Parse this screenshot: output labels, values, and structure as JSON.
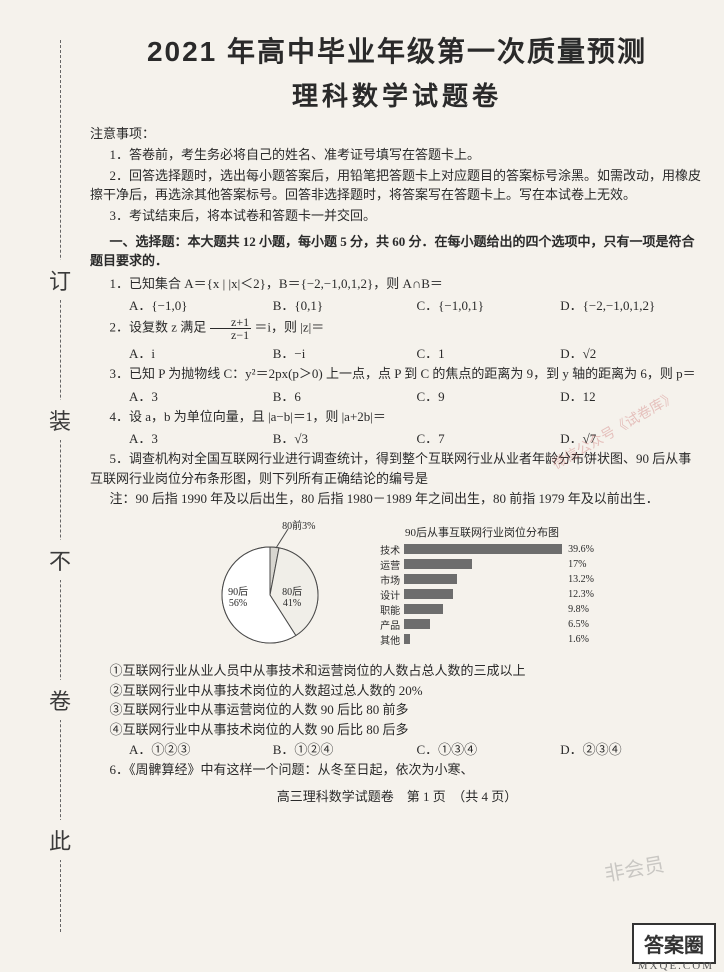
{
  "header": {
    "title": "2021 年高中毕业年级第一次质量预测",
    "subtitle": "理科数学试题卷"
  },
  "binding": {
    "chars": [
      "此",
      "卷",
      "不",
      "装",
      "订"
    ]
  },
  "notice": {
    "head": "注意事项：",
    "items": [
      "1．答卷前，考生务必将自己的姓名、准考证号填写在答题卡上。",
      "2．回答选择题时，选出每小题答案后，用铅笔把答题卡上对应题目的答案标号涂黑。如需改动，用橡皮擦干净后，再选涂其他答案标号。回答非选择题时，将答案写在答题卡上。写在本试卷上无效。",
      "3．考试结束后，将本试卷和答题卡一并交回。"
    ]
  },
  "section1": {
    "head": "一、选择题：本大题共 12 小题，每小题 5 分，共 60 分．在每小题给出的四个选项中，只有一项是符合题目要求的．"
  },
  "q1": {
    "text": "1．已知集合 A＝{x | |x|＜2}，B＝{−2,−1,0,1,2}，则 A∩B＝",
    "opts": [
      "A．{−1,0}",
      "B．{0,1}",
      "C．{−1,0,1}",
      "D．{−2,−1,0,1,2}"
    ]
  },
  "q2": {
    "pre": "2．设复数 z 满足 ",
    "frac_n": "z+1",
    "frac_d": "z−1",
    "post": "＝i，则 |z|＝",
    "opts": [
      "A．i",
      "B．−i",
      "C．1",
      "D．√2"
    ]
  },
  "q3": {
    "text": "3．已知 P 为抛物线 C：y²＝2px(p＞0) 上一点，点 P 到 C 的焦点的距离为 9，到 y 轴的距离为 6，则 p＝",
    "opts": [
      "A．3",
      "B．6",
      "C．9",
      "D．12"
    ]
  },
  "q4": {
    "text": "4．设 a，b 为单位向量，且 |a−b|＝1，则 |a+2b|＝",
    "opts": [
      "A．3",
      "B．√3",
      "C．7",
      "D．√7"
    ]
  },
  "q5": {
    "text": "5．调查机构对全国互联网行业进行调查统计，得到整个互联网行业从业者年龄分布饼状图、90 后从事互联网行业岗位分布条形图，则下列所有正确结论的编号是",
    "note": "注：90 后指 1990 年及以后出生，80 后指 1980－1989 年之间出生，80 前指 1979 年及以前出生．"
  },
  "pie": {
    "title": "",
    "labels": {
      "pre80": "80前3%",
      "post90": "90后\n56%",
      "post80": "80后\n41%"
    },
    "slices": [
      {
        "label": "80前",
        "value": 3,
        "color": "#d8d6d0"
      },
      {
        "label": "90后",
        "value": 56,
        "color": "#ffffff"
      },
      {
        "label": "80后",
        "value": 41,
        "color": "#f0eee8"
      }
    ],
    "stroke": "#4a4a4a"
  },
  "bar": {
    "title": "90后从事互联网行业岗位分布图",
    "rows": [
      {
        "label": "技术",
        "value": 39.6,
        "text": "39.6%"
      },
      {
        "label": "运营",
        "value": 17.0,
        "text": "17%"
      },
      {
        "label": "市场",
        "value": 13.2,
        "text": "13.2%"
      },
      {
        "label": "设计",
        "value": 12.3,
        "text": "12.3%"
      },
      {
        "label": "职能",
        "value": 9.8,
        "text": "9.8%"
      },
      {
        "label": "产品",
        "value": 6.5,
        "text": "6.5%"
      },
      {
        "label": "其他",
        "value": 1.6,
        "text": "1.6%"
      }
    ],
    "bar_color": "#6d6d6d",
    "max": 40
  },
  "statements": [
    "①互联网行业从业人员中从事技术和运营岗位的人数占总人数的三成以上",
    "②互联网行业中从事技术岗位的人数超过总人数的 20%",
    "③互联网行业中从事运营岗位的人数 90 后比 80 前多",
    "④互联网行业中从事技术岗位的人数 90 后比 80 后多"
  ],
  "q5opts": [
    "A．①②③",
    "B．①②④",
    "C．①③④",
    "D．②③④"
  ],
  "q6": {
    "text": "6．《周髀算经》中有这样一个问题：从冬至日起，依次为小寒、"
  },
  "footer": "高三理科数学试题卷　第 1 页　（共 4 页）",
  "watermark": "微信公众号《试卷库》",
  "watermark2": "非会员",
  "corner": "答案圈",
  "corner_sub": "MXQE.COM"
}
